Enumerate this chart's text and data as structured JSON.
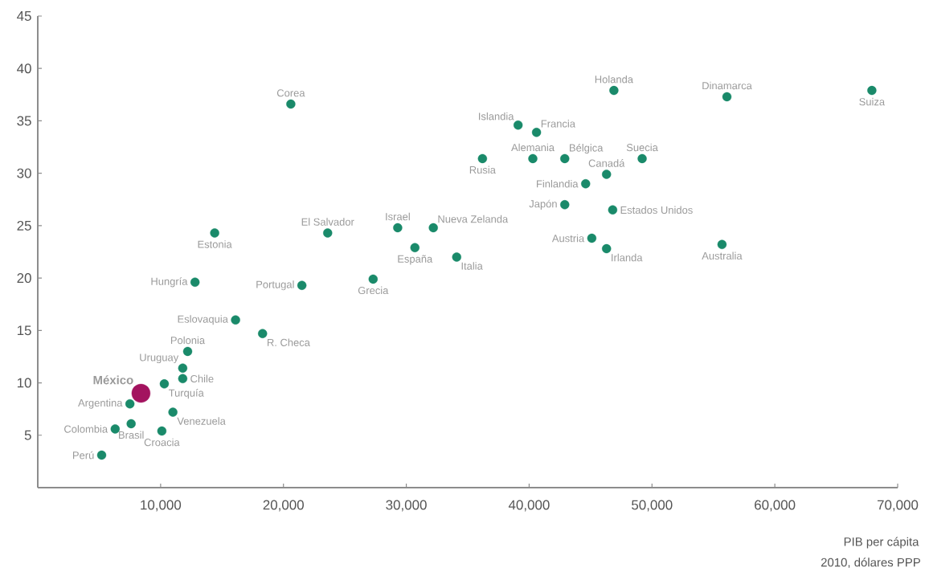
{
  "chart_data": {
    "type": "scatter",
    "xlabel": "PIB per cápita",
    "xlim": [
      0,
      70000
    ],
    "ylim": [
      0,
      45
    ],
    "xticks": [
      {
        "value": 10000,
        "label": "10,000"
      },
      {
        "value": 20000,
        "label": "20,000"
      },
      {
        "value": 30000,
        "label": "30,000"
      },
      {
        "value": 40000,
        "label": "40,000"
      },
      {
        "value": 50000,
        "label": "50,000"
      },
      {
        "value": 60000,
        "label": "60,000"
      },
      {
        "value": 70000,
        "label": "70,000"
      }
    ],
    "yticks": [
      5,
      10,
      15,
      20,
      25,
      30,
      35,
      40,
      45
    ],
    "grid": false,
    "series": [
      {
        "color": "#1a8a6a",
        "x": [
          20600,
          46900,
          56100,
          67900,
          39100,
          40600,
          36200,
          40300,
          42900,
          49200,
          46300,
          44600,
          42900,
          46800,
          45100,
          46300,
          55700,
          34100,
          30700,
          29300,
          32200,
          23600,
          14400,
          27300,
          12800,
          21500,
          16100,
          18300,
          12200,
          11800,
          11800,
          10300,
          7500,
          11000,
          7600,
          6300,
          10100,
          5200
        ],
        "values": [
          36.6,
          37.9,
          37.3,
          37.9,
          34.6,
          33.9,
          31.4,
          31.4,
          31.4,
          31.4,
          29.9,
          29.0,
          27.0,
          26.5,
          23.8,
          22.8,
          23.2,
          22.0,
          22.9,
          24.8,
          24.8,
          24.3,
          24.3,
          19.9,
          19.6,
          19.3,
          16.0,
          14.7,
          13.0,
          11.4,
          10.4,
          9.9,
          8.0,
          7.2,
          6.1,
          5.6,
          5.4,
          3.1
        ]
      },
      {
        "color": "#a3135f",
        "x": [
          8400
        ],
        "values": [
          9.0
        ]
      }
    ],
    "annotations": [
      {
        "text": "Corea",
        "x": 20600,
        "y": 36.6
      },
      {
        "text": "Holanda",
        "x": 46900,
        "y": 37.9
      },
      {
        "text": "Dinamarca",
        "x": 56100,
        "y": 37.3
      },
      {
        "text": "Suiza",
        "x": 67900,
        "y": 37.9
      },
      {
        "text": "Islandia",
        "x": 39100,
        "y": 34.6
      },
      {
        "text": "Francia",
        "x": 40600,
        "y": 33.9
      },
      {
        "text": "Rusia",
        "x": 36200,
        "y": 31.4
      },
      {
        "text": "Alemania",
        "x": 40300,
        "y": 31.4
      },
      {
        "text": "Bélgica",
        "x": 42900,
        "y": 31.4
      },
      {
        "text": "Suecia",
        "x": 49200,
        "y": 31.4
      },
      {
        "text": "Canadá",
        "x": 46300,
        "y": 29.9
      },
      {
        "text": "Finlandia",
        "x": 44600,
        "y": 29.0
      },
      {
        "text": "Japón",
        "x": 42900,
        "y": 27.0
      },
      {
        "text": "Estados Unidos",
        "x": 46800,
        "y": 26.5
      },
      {
        "text": "Austria",
        "x": 45100,
        "y": 23.8
      },
      {
        "text": "Irlanda",
        "x": 46300,
        "y": 22.8
      },
      {
        "text": "Australia",
        "x": 55700,
        "y": 23.2
      },
      {
        "text": "Italia",
        "x": 34100,
        "y": 22.0
      },
      {
        "text": "España",
        "x": 30700,
        "y": 22.9
      },
      {
        "text": "Israel",
        "x": 29300,
        "y": 24.8
      },
      {
        "text": "Nueva Zelanda",
        "x": 32200,
        "y": 24.8
      },
      {
        "text": "El Salvador",
        "x": 23600,
        "y": 24.3
      },
      {
        "text": "Estonia",
        "x": 14400,
        "y": 24.3
      },
      {
        "text": "Grecia",
        "x": 27300,
        "y": 19.9
      },
      {
        "text": "Hungría",
        "x": 12800,
        "y": 19.6
      },
      {
        "text": "Portugal",
        "x": 21500,
        "y": 19.3
      },
      {
        "text": "Eslovaquia",
        "x": 16100,
        "y": 16.0
      },
      {
        "text": "R. Checa",
        "x": 18300,
        "y": 14.7
      },
      {
        "text": "Polonia",
        "x": 12200,
        "y": 13.0
      },
      {
        "text": "Uruguay",
        "x": 11800,
        "y": 11.4
      },
      {
        "text": "Chile",
        "x": 11800,
        "y": 10.4
      },
      {
        "text": "Turquía",
        "x": 10300,
        "y": 9.9
      },
      {
        "text": "Argentina",
        "x": 7500,
        "y": 8.0
      },
      {
        "text": "Venezuela",
        "x": 11000,
        "y": 7.2
      },
      {
        "text": "Brasil",
        "x": 7600,
        "y": 6.1
      },
      {
        "text": "Colombia",
        "x": 6300,
        "y": 5.6
      },
      {
        "text": "Croacia",
        "x": 10100,
        "y": 5.4
      },
      {
        "text": "Perú",
        "x": 5200,
        "y": 3.1
      },
      {
        "text": "México",
        "x": 8400,
        "y": 9.0
      },
      "2010, dólares PPP"
    ]
  }
}
